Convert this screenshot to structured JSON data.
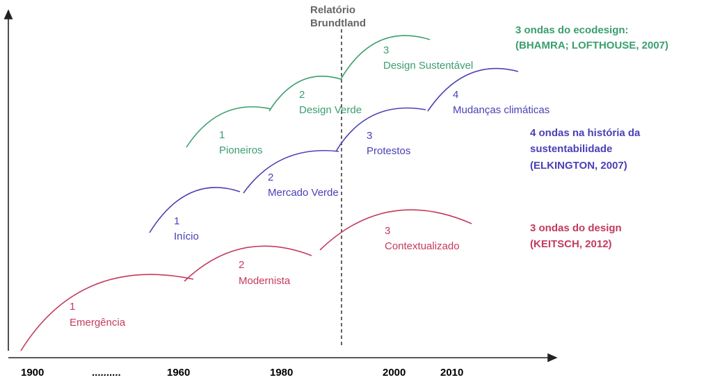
{
  "x_axis": {
    "labels": [
      "1900",
      "..........",
      "1960",
      "1980",
      "2000",
      "2010"
    ]
  },
  "marker": {
    "lines": [
      "Relatório",
      "Brundtland"
    ]
  },
  "groups": [
    {
      "legend": [
        "3 ondas do ecodesign:",
        "(BHAMRA; LOFTHOUSE, 2007)"
      ],
      "waves": [
        {
          "number": "1",
          "label": "Pioneiros"
        },
        {
          "number": "2",
          "label": "Design Verde"
        },
        {
          "number": "3",
          "label": "Design Sustentável"
        }
      ]
    },
    {
      "legend": [
        "4 ondas na história da",
        "sustentabilidade",
        "(ELKINGTON, 2007)"
      ],
      "waves": [
        {
          "number": "1",
          "label": "Início"
        },
        {
          "number": "2",
          "label": "Mercado Verde"
        },
        {
          "number": "3",
          "label": "Protestos"
        },
        {
          "number": "4",
          "label": "Mudanças climáticas"
        }
      ]
    },
    {
      "legend": [
        "3 ondas do design",
        "(KEITSCH, 2012)"
      ],
      "waves": [
        {
          "number": "1",
          "label": "Emergência"
        },
        {
          "number": "2",
          "label": "Modernista"
        },
        {
          "number": "3",
          "label": "Contextualizado"
        }
      ]
    }
  ]
}
